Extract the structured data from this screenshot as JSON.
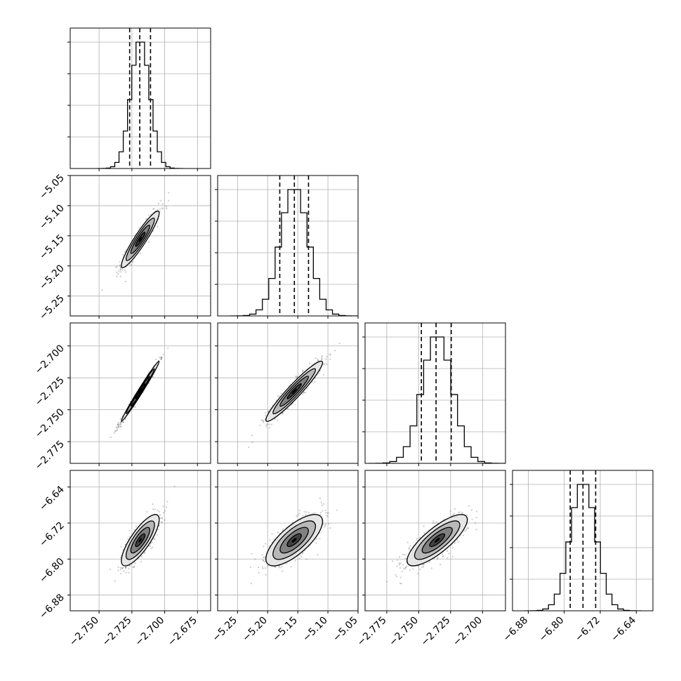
{
  "chart_data": {
    "type": "corner",
    "title": "",
    "parameters": [
      {
        "label": "",
        "range": [
          -2.772,
          -2.665
        ],
        "ticks": [
          -2.75,
          -2.725,
          -2.7,
          -2.675
        ],
        "tick_labels": [
          "−2.750",
          "−2.725",
          "−2.700",
          "−2.675"
        ],
        "quantiles": [
          -2.7267,
          -2.719,
          -2.7108
        ],
        "peak": -2.7186,
        "sigma": 0.0072
      },
      {
        "label": "",
        "range": [
          -5.283,
          -5.05
        ],
        "ticks": [
          -5.25,
          -5.2,
          -5.15,
          -5.1,
          -5.05
        ],
        "tick_labels": [
          "−5.25",
          "−5.20",
          "−5.15",
          "−5.10",
          "−5.05"
        ],
        "quantiles": [
          -5.1799,
          -5.1557,
          -5.1322
        ],
        "peak": -5.1559,
        "sigma": 0.0235
      },
      {
        "label": "",
        "range": [
          -2.792,
          -2.682
        ],
        "ticks": [
          -2.775,
          -2.75,
          -2.725,
          -2.7
        ],
        "tick_labels": [
          "−2.775",
          "−2.750",
          "−2.725",
          "−2.700"
        ],
        "quantiles": [
          -2.7479,
          -2.7364,
          -2.7245
        ],
        "peak": -2.7355,
        "sigma": 0.0118
      },
      {
        "label": "",
        "range": [
          -6.915,
          -6.603
        ],
        "ticks": [
          -6.88,
          -6.8,
          -6.72,
          -6.64
        ],
        "tick_labels": [
          "−6.88",
          "−6.80",
          "−6.72",
          "−6.64"
        ],
        "quantiles": [
          -6.7868,
          -6.7584,
          -6.7302
        ],
        "peak": -6.7581,
        "sigma": 0.0285
      }
    ],
    "correlations": [
      [
        1.0,
        0.93,
        0.99,
        0.8
      ],
      [
        0.93,
        1.0,
        0.95,
        0.73
      ],
      [
        0.99,
        0.95,
        1.0,
        0.8
      ],
      [
        0.8,
        0.73,
        0.8,
        1.0
      ]
    ],
    "histogram_bins": 20,
    "contour_levels": [
      0.118,
      0.393,
      0.675,
      0.864
    ],
    "grid": true,
    "quantile_line_style": "dashed",
    "colors": {
      "line": "#000000",
      "grid": "#b0b0b0",
      "points": "#555555",
      "contour_fills": [
        "#ffffff",
        "#e6e6e6",
        "#b8b8b8",
        "#808080",
        "#404040",
        "#000000"
      ]
    }
  }
}
